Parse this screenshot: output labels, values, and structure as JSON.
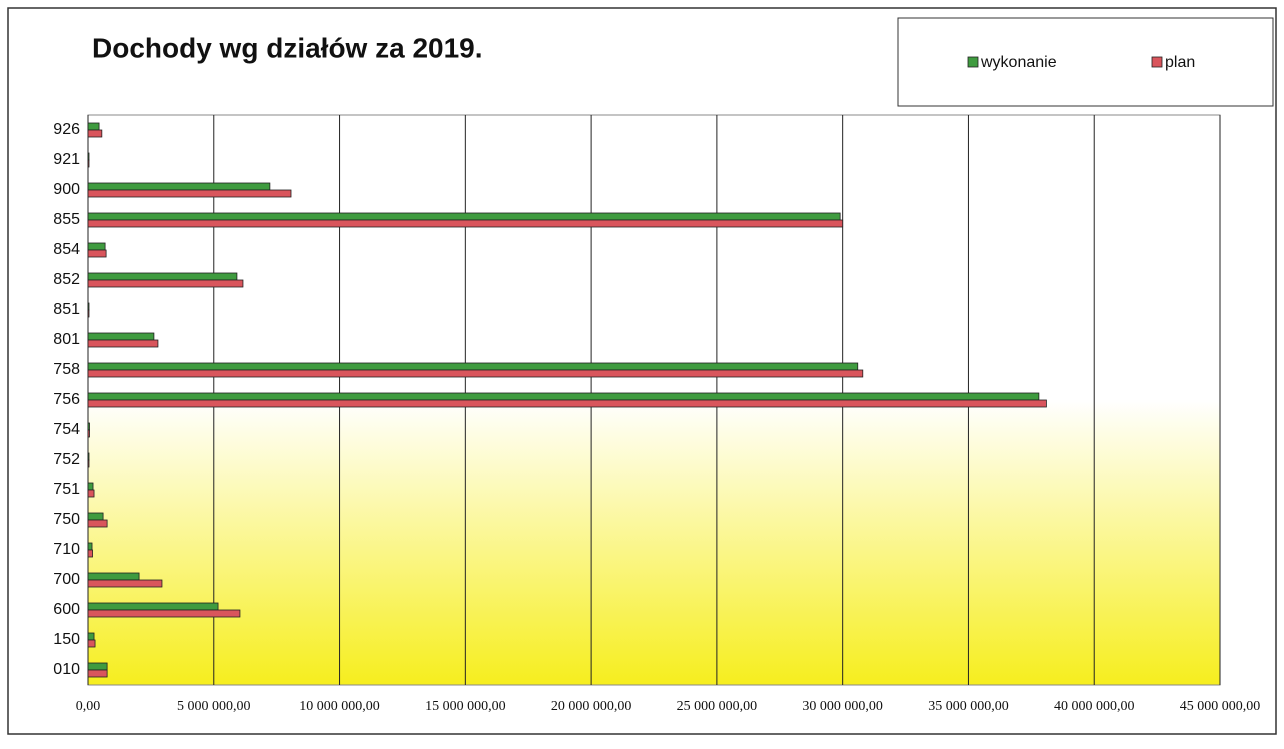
{
  "chart_data": {
    "type": "barh",
    "title": "Dochody wg działów za 2019.",
    "categories": [
      "926",
      "921",
      "900",
      "855",
      "854",
      "852",
      "851",
      "801",
      "758",
      "756",
      "754",
      "752",
      "751",
      "750",
      "710",
      "700",
      "600",
      "150",
      "010"
    ],
    "series": [
      {
        "name": "wykonanie",
        "color": "#3f9b3f",
        "values": [
          440000,
          40000,
          7230000,
          29900000,
          680000,
          5920000,
          20000,
          2620000,
          30600000,
          37800000,
          60000,
          20000,
          200000,
          600000,
          160000,
          2030000,
          5170000,
          240000,
          760000
        ]
      },
      {
        "name": "plan",
        "color": "#d9555c",
        "values": [
          550000,
          40000,
          8070000,
          30000000,
          720000,
          6160000,
          20000,
          2780000,
          30800000,
          38100000,
          60000,
          20000,
          240000,
          760000,
          180000,
          2940000,
          6040000,
          280000,
          760000
        ]
      }
    ],
    "xlim": [
      0,
      45000000
    ],
    "xticks": [
      {
        "value": 0,
        "label": "0,00"
      },
      {
        "value": 5000000,
        "label": "5 000 000,00"
      },
      {
        "value": 10000000,
        "label": "10 000 000,00"
      },
      {
        "value": 15000000,
        "label": "15 000 000,00"
      },
      {
        "value": 20000000,
        "label": "20 000 000,00"
      },
      {
        "value": 25000000,
        "label": "25 000 000,00"
      },
      {
        "value": 30000000,
        "label": "30 000 000,00"
      },
      {
        "value": 35000000,
        "label": "35 000 000,00"
      },
      {
        "value": 40000000,
        "label": "40 000 000,00"
      },
      {
        "value": 45000000,
        "label": "45 000 000,00"
      }
    ],
    "grid": true,
    "legend": "top-right"
  }
}
